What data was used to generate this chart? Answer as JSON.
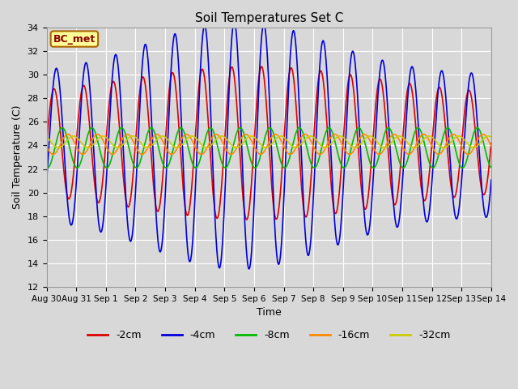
{
  "title": "Soil Temperatures Set C",
  "xlabel": "Time",
  "ylabel": "Soil Temperature (C)",
  "ylim": [
    12,
    34
  ],
  "bg_color": "#d8d8d8",
  "plot_bg_color": "#d8d8d8",
  "annotation_text": "BC_met",
  "annotation_bg": "#ffff99",
  "annotation_border": "#aa6600",
  "annotation_text_color": "#880000",
  "colors": [
    "#dd0000",
    "#0000dd",
    "#00bb00",
    "#ff8800",
    "#cccc00"
  ],
  "labels": [
    "-2cm",
    "-4cm",
    "-8cm",
    "-16cm",
    "-32cm"
  ],
  "xtick_labels": [
    "Aug 30",
    "Aug 31",
    "Sep 1",
    "Sep 2",
    "Sep 3",
    "Sep 4",
    "Sep 5",
    "Sep 6",
    "Sep 7",
    "Sep 8",
    "Sep 9",
    "Sep 10",
    "Sep 11",
    "Sep 12",
    "Sep 13",
    "Sep 14"
  ],
  "xtick_positions": [
    0,
    1,
    2,
    3,
    4,
    5,
    6,
    7,
    8,
    9,
    10,
    11,
    12,
    13,
    14,
    15
  ],
  "ytick_positions": [
    12,
    14,
    16,
    18,
    20,
    22,
    24,
    26,
    28,
    30,
    32,
    34
  ],
  "grid_color": "#ffffff",
  "linewidth": 1.2
}
